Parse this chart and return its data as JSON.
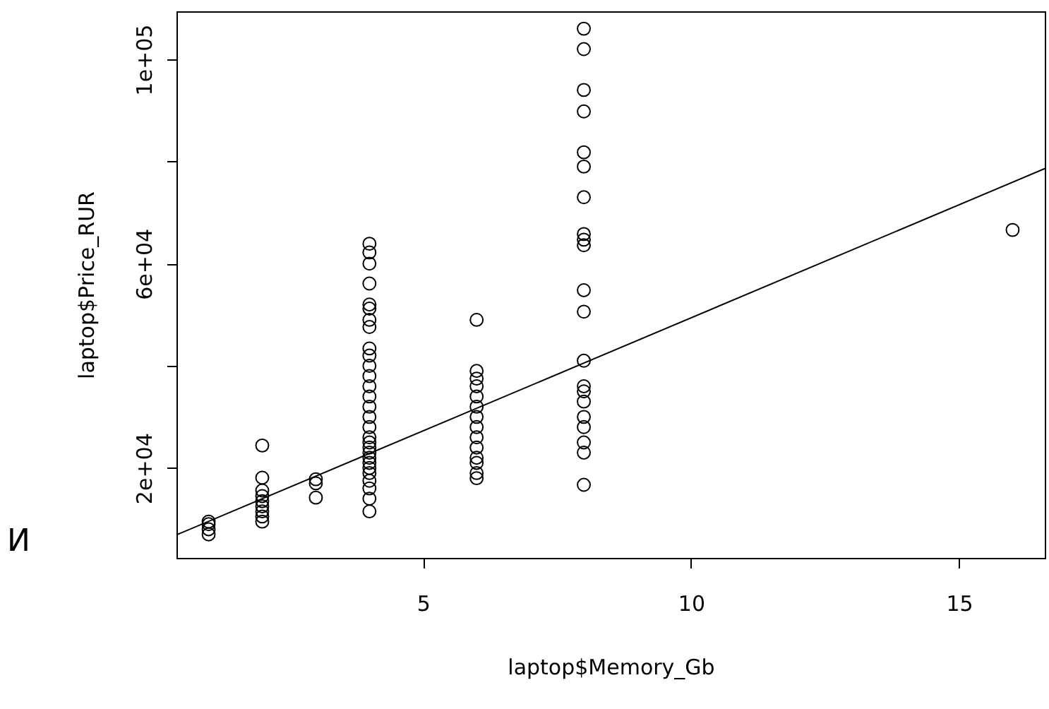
{
  "chart_data": {
    "type": "scatter",
    "xlabel": "laptop$Memory_Gb",
    "ylabel": "laptop$Price_RUR",
    "xlim": [
      0.4,
      16.6
    ],
    "ylim": [
      2400,
      109400
    ],
    "xticks": [
      5,
      10,
      15
    ],
    "yticks": [
      {
        "value": 20000,
        "label": "2e+04"
      },
      {
        "value": 40000,
        "label": null
      },
      {
        "value": 60000,
        "label": "6e+04"
      },
      {
        "value": 80000,
        "label": null
      },
      {
        "value": 100000,
        "label": "1e+05"
      }
    ],
    "grid": false,
    "annotations": [
      "И"
    ],
    "series": [
      {
        "marker": "circle",
        "color": "#000000",
        "x": [
          1,
          1,
          1,
          1,
          2,
          2,
          2,
          2,
          2,
          2,
          2,
          2,
          2,
          3,
          3,
          3,
          4,
          4,
          4,
          4,
          4,
          4,
          4,
          4,
          4,
          4,
          4,
          4,
          4,
          4,
          4,
          4,
          4,
          4,
          4,
          4,
          4,
          4,
          4,
          4,
          4,
          4,
          4,
          4,
          4,
          6,
          6,
          6,
          6,
          6,
          6,
          6,
          6,
          6,
          6,
          6,
          6,
          6,
          6,
          8,
          8,
          8,
          8,
          8,
          8,
          8,
          8,
          8,
          8,
          8,
          8,
          8,
          8,
          8,
          8,
          8,
          8,
          8,
          8,
          8,
          16
        ],
        "values": [
          7000,
          8000,
          9000,
          9500,
          24400,
          18100,
          15600,
          14500,
          13500,
          12500,
          11500,
          10500,
          9500,
          17800,
          17000,
          14200,
          63900,
          62200,
          60000,
          56100,
          52000,
          51200,
          49000,
          47600,
          43400,
          42000,
          40000,
          38000,
          36000,
          34000,
          32000,
          30000,
          28000,
          26000,
          25000,
          24000,
          23000,
          22000,
          21000,
          20000,
          19000,
          17500,
          16000,
          14000,
          11500,
          49000,
          39000,
          37500,
          36000,
          34000,
          32000,
          30000,
          28000,
          26000,
          24000,
          22000,
          21000,
          19000,
          18000,
          16700,
          106000,
          102000,
          94000,
          89800,
          81800,
          79000,
          73000,
          65800,
          64700,
          63600,
          54800,
          50600,
          41000,
          36000,
          35000,
          33000,
          30000,
          28000,
          25000,
          23000,
          66600
        ]
      },
      {
        "type": "line",
        "color": "#000000",
        "x": [
          0.4,
          16.6
        ],
        "values": [
          6900,
          78600
        ]
      }
    ]
  }
}
